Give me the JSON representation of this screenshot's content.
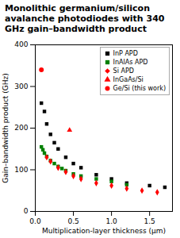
{
  "chart_data": {
    "type": "scatter",
    "title": "Monolithic germanium/silicon avalanche photodiodes with 340 GHz gain–bandwidth product",
    "x_label": "Multiplication-layer thickness (μm)",
    "y_label": "Gain–bandwidth product (GHz)",
    "xlim": [
      0.0,
      1.8
    ],
    "ylim": [
      0,
      400
    ],
    "xticks": [
      {
        "value": 0,
        "label": "0.0"
      },
      0.5,
      {
        "value": 1.0,
        "label": "1.0"
      },
      1.5
    ],
    "yticks": [
      0,
      100,
      200,
      300,
      400
    ],
    "grid": false,
    "legend": "upper right",
    "series": [
      {
        "name": "InP APD",
        "color": "black",
        "marker": "square",
        "x": [
          0.08,
          0.12,
          0.15,
          0.2,
          0.25,
          0.3,
          0.4,
          0.5,
          0.6,
          0.8,
          1.0,
          1.2,
          1.5,
          1.7
        ],
        "values": [
          260,
          240,
          210,
          185,
          165,
          150,
          130,
          115,
          105,
          88,
          78,
          68,
          62,
          58
        ]
      },
      {
        "name": "InAlAs APD",
        "color": "green",
        "marker": "square",
        "x": [
          0.08,
          0.1,
          0.12,
          0.15,
          0.2,
          0.25,
          0.3,
          0.35,
          0.4,
          0.5,
          0.6,
          0.8,
          1.0,
          1.2
        ],
        "values": [
          155,
          148,
          140,
          132,
          122,
          115,
          108,
          103,
          98,
          90,
          85,
          78,
          72,
          64
        ]
      },
      {
        "name": "Si APD",
        "color": "red",
        "marker": "diamond",
        "x": [
          0.15,
          0.2,
          0.3,
          0.4,
          0.5,
          0.6,
          0.8,
          1.0,
          1.2,
          1.4,
          1.6
        ],
        "values": [
          130,
          120,
          105,
          95,
          85,
          78,
          68,
          62,
          55,
          50,
          46
        ]
      },
      {
        "name": "InGaAs/Si",
        "color": "red",
        "marker": "triangle",
        "x": [
          0.45
        ],
        "values": [
          195
        ]
      },
      {
        "name": "Ge/Si (this work)",
        "color": "red",
        "marker": "circle",
        "x": [
          0.08
        ],
        "values": [
          340
        ]
      }
    ]
  }
}
